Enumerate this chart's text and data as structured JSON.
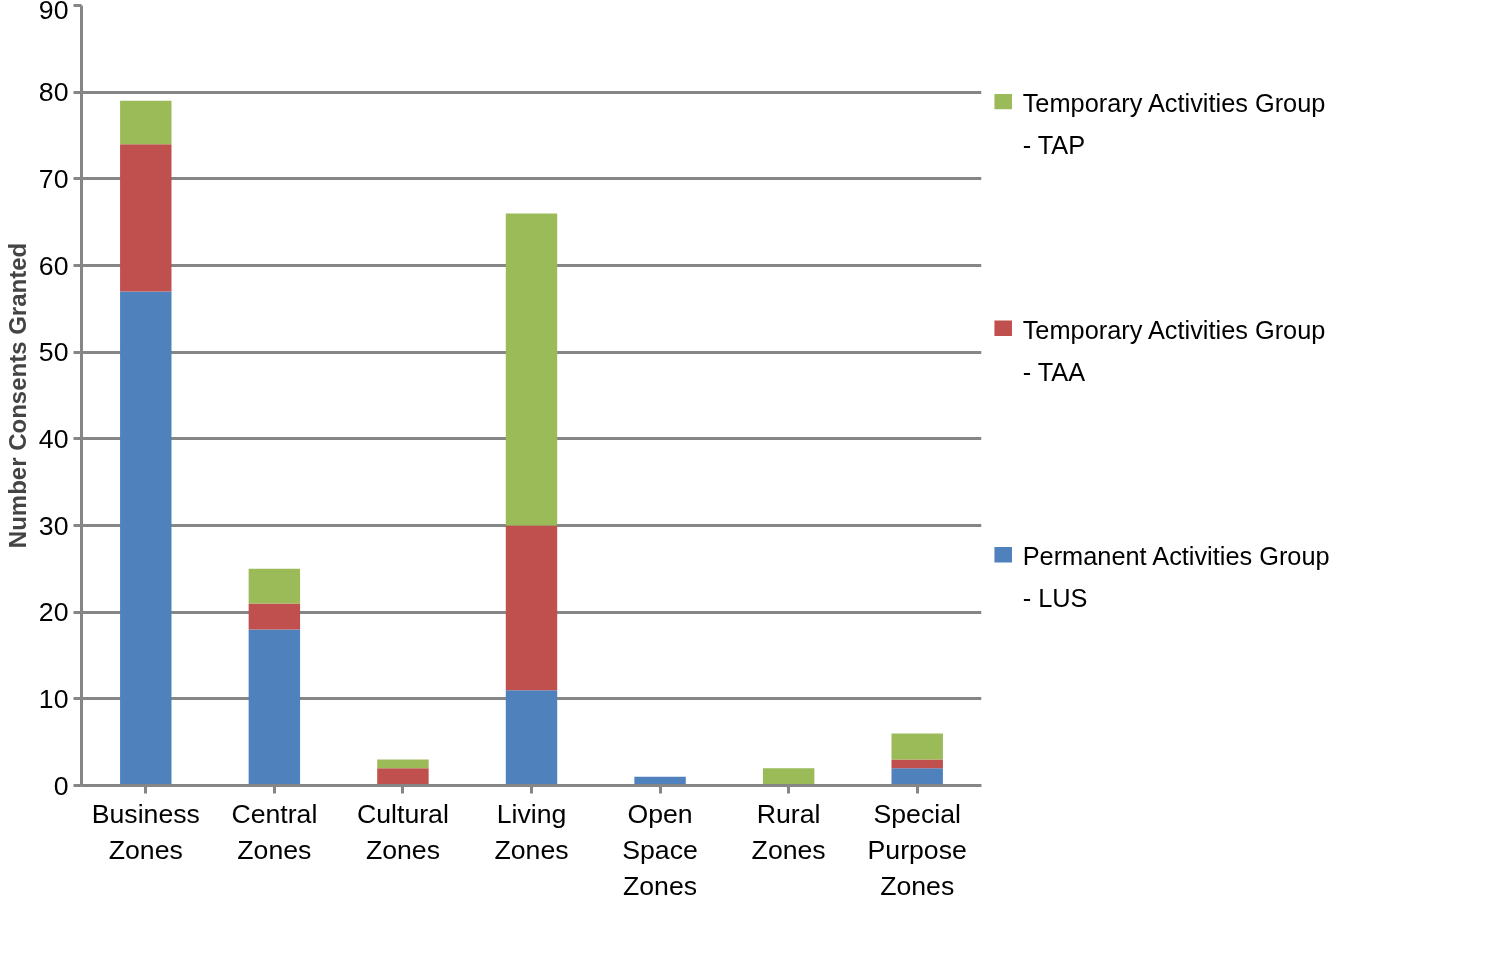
{
  "chart_data": {
    "type": "bar",
    "stacked": true,
    "ylabel": "Number Consents Granted",
    "categories": [
      "Business Zones",
      "Central Zones",
      "Cultural Zones",
      "Living Zones",
      "Open Space Zones",
      "Rural Zones",
      "Special Purpose Zones"
    ],
    "series": [
      {
        "name": "Permanent Activities Group - LUS",
        "color": "#4f81bd",
        "values": [
          57,
          18,
          0,
          11,
          1,
          0,
          2
        ]
      },
      {
        "name": "Temporary Activities Group - TAA",
        "color": "#c0504d",
        "values": [
          17,
          3,
          2,
          19,
          0,
          0,
          1
        ]
      },
      {
        "name": "Temporary Activities Group - TAP",
        "color": "#9bbb59",
        "values": [
          5,
          4,
          1,
          36,
          0,
          2,
          3
        ]
      }
    ],
    "ylim": [
      0,
      90
    ],
    "yticks": [
      0,
      10,
      20,
      30,
      40,
      50,
      60,
      70,
      80,
      90
    ],
    "grid": "y",
    "legend": "right"
  }
}
